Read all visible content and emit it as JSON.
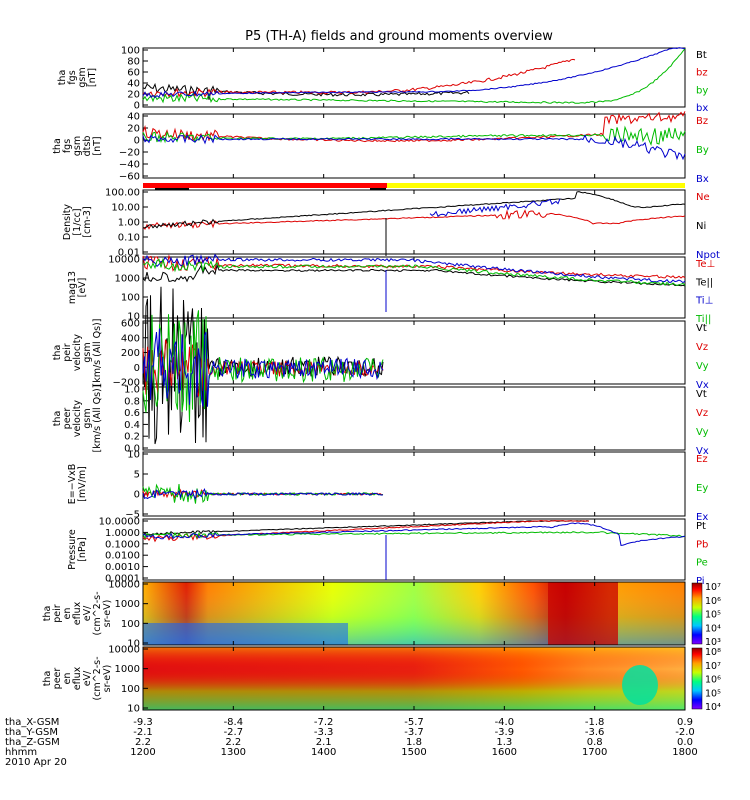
{
  "chart_data": {
    "type": "line",
    "title": "P5 (TH-A) fields and ground moments overview",
    "grid": false,
    "x": {
      "unit": "hhmm",
      "ticks": [
        "1200",
        "1300",
        "1400",
        "1500",
        "1600",
        "1700",
        "1800"
      ],
      "range": [
        "1200",
        "1800"
      ]
    },
    "footer": {
      "rows": [
        {
          "label": "tha_X-GSM",
          "values": [
            "-9.3",
            "-8.4",
            "-7.2",
            "-5.7",
            "-4.0",
            "-1.8",
            "0.9"
          ]
        },
        {
          "label": "tha_Y-GSM",
          "values": [
            "-2.1",
            "-2.7",
            "-3.3",
            "-3.7",
            "-3.9",
            "-3.6",
            "-2.0"
          ]
        },
        {
          "label": "tha_Z-GSM",
          "values": [
            "2.2",
            "2.2",
            "2.1",
            "1.8",
            "1.3",
            "0.8",
            "0.0"
          ]
        },
        {
          "label": "hhmm",
          "values": [
            "1200",
            "1300",
            "1400",
            "1500",
            "1600",
            "1700",
            "1800"
          ]
        }
      ],
      "date": "2010 Apr 20"
    },
    "panels": [
      {
        "ylabel": [
          "tha",
          "fgs",
          "gsm",
          "[nT]"
        ],
        "yticks": [
          "100",
          "80",
          "60",
          "40",
          "20",
          "0"
        ],
        "ylim": [
          0,
          100
        ],
        "legend": [
          "Bt",
          "bz",
          "by",
          "bx"
        ],
        "legend_colors": [
          "#000000",
          "#dd0000",
          "#00bb00",
          "#0000cc"
        ]
      },
      {
        "ylabel": [
          "tha",
          "fgs",
          "gsm",
          "dtsb",
          "[nT]"
        ],
        "yticks": [
          "40",
          "20",
          "0",
          "−20",
          "−40",
          "−60"
        ],
        "ylim": [
          -65,
          45
        ],
        "legend": [
          "Bz",
          "By",
          "Bx"
        ],
        "legend_colors": [
          "#dd0000",
          "#00bb00",
          "#0000cc"
        ]
      },
      {
        "ylabel": [
          "Density",
          "[1/cc]",
          "[cm-3]"
        ],
        "yticks": [
          "100.00",
          "10.00",
          "1.00",
          "0.10",
          "0.01"
        ],
        "scale": "log",
        "legend": [
          "Ne",
          "Ni",
          "Npot"
        ],
        "legend_colors": [
          "#dd0000",
          "#000000",
          "#0000cc"
        ]
      },
      {
        "ylabel": [
          "mag13",
          "[eV]"
        ],
        "yticks": [
          "10000",
          "1000",
          "100",
          "10"
        ],
        "scale": "log",
        "legend": [
          "Te⊥",
          "Te||",
          "Ti⊥",
          "Ti||"
        ],
        "legend_colors": [
          "#dd0000",
          "#000000",
          "#0000cc",
          "#00bb00"
        ]
      },
      {
        "ylabel": [
          "tha",
          "peir",
          "velocity",
          "gsm",
          "[km/s (All Qs)]"
        ],
        "yticks": [
          "600",
          "400",
          "200",
          "0",
          "−200"
        ],
        "ylim": [
          -220,
          620
        ],
        "legend": [
          "Vt",
          "Vz",
          "Vy",
          "Vx"
        ],
        "legend_colors": [
          "#000000",
          "#dd0000",
          "#00bb00",
          "#0000cc"
        ]
      },
      {
        "ylabel": [
          "tha",
          "peer",
          "velocity",
          "gsm",
          "[km/s (All Qs)]"
        ],
        "yticks": [
          "1.0",
          "0.8",
          "0.6",
          "0.4",
          "0.2",
          "0.0"
        ],
        "ylim": [
          0,
          1
        ],
        "legend": [
          "Vt",
          "Vz",
          "Vy",
          "Vx"
        ],
        "legend_colors": [
          "#000000",
          "#dd0000",
          "#00bb00",
          "#0000cc"
        ]
      },
      {
        "ylabel": [
          "E=−VxB",
          "[mV/m]"
        ],
        "yticks": [
          "10",
          "5",
          "0",
          "−5"
        ],
        "ylim": [
          -6,
          12
        ],
        "legend": [
          "Ez",
          "Ey",
          "Ex"
        ],
        "legend_colors": [
          "#dd0000",
          "#00bb00",
          "#0000cc"
        ]
      },
      {
        "ylabel": [
          "Pressure",
          "[nPa]"
        ],
        "yticks": [
          "10.0000",
          "1.0000",
          "0.1000",
          "0.0100",
          "0.0010",
          "0.0001"
        ],
        "scale": "log",
        "legend": [
          "Pt",
          "Pb",
          "Pe",
          "Pi"
        ],
        "legend_colors": [
          "#000000",
          "#dd0000",
          "#00bb00",
          "#0000cc"
        ]
      },
      {
        "ylabel": [
          "tha",
          "peir",
          "en",
          "eflux",
          "eV/",
          "(cm^2-s-",
          "sr-eV)"
        ],
        "yticks": [
          "10000",
          "1000",
          "100",
          "10"
        ],
        "colorbar": [
          "10⁷",
          "10⁶",
          "10⁵",
          "10⁴",
          "10³"
        ]
      },
      {
        "ylabel": [
          "tha",
          "peer",
          "en",
          "eflux",
          "eV/",
          "(cm^2-s-",
          "sr-eV)"
        ],
        "yticks": [
          "10000",
          "1000",
          "100",
          "10"
        ],
        "colorbar": [
          "10⁸",
          "10⁷",
          "10⁶",
          "10⁵",
          "10⁴"
        ]
      }
    ]
  }
}
